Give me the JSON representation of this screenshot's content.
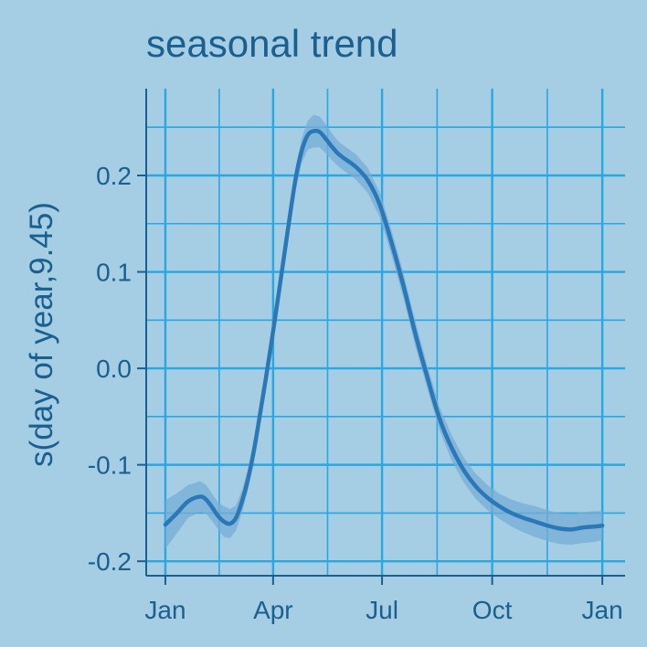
{
  "chart_data": {
    "type": "line",
    "title": "seasonal trend",
    "xlabel": "",
    "ylabel": "s(day of year,9.45)",
    "x_ticks": [
      {
        "label": "Jan",
        "day": 1
      },
      {
        "label": "Apr",
        "day": 91
      },
      {
        "label": "Jul",
        "day": 182
      },
      {
        "label": "Oct",
        "day": 274
      },
      {
        "label": "Jan",
        "day": 366
      }
    ],
    "y_ticks": [
      {
        "label": "-0.2",
        "value": -0.2
      },
      {
        "label": "-0.1",
        "value": -0.1
      },
      {
        "label": "0.0",
        "value": 0.0
      },
      {
        "label": "0.1",
        "value": 0.1
      },
      {
        "label": "0.2",
        "value": 0.2
      }
    ],
    "xlim": [
      -15,
      385
    ],
    "ylim": [
      -0.215,
      0.29
    ],
    "grid": true,
    "series": [
      {
        "x": [
          1,
          10,
          20,
          30,
          35,
          40,
          45,
          50,
          55,
          60,
          65,
          70,
          75,
          80,
          85,
          90,
          95,
          100,
          105,
          110,
          115,
          120,
          125,
          130,
          135,
          140,
          145,
          150,
          160,
          170,
          180,
          190,
          200,
          210,
          220,
          230,
          240,
          250,
          260,
          270,
          280,
          290,
          300,
          310,
          320,
          330,
          340,
          350,
          360,
          366
        ],
        "y": [
          -0.162,
          -0.151,
          -0.138,
          -0.133,
          -0.136,
          -0.144,
          -0.153,
          -0.159,
          -0.161,
          -0.155,
          -0.138,
          -0.115,
          -0.085,
          -0.048,
          -0.01,
          0.03,
          0.072,
          0.115,
          0.158,
          0.198,
          0.226,
          0.242,
          0.246,
          0.245,
          0.238,
          0.23,
          0.223,
          0.218,
          0.209,
          0.195,
          0.17,
          0.13,
          0.085,
          0.035,
          -0.01,
          -0.052,
          -0.082,
          -0.105,
          -0.122,
          -0.134,
          -0.143,
          -0.15,
          -0.155,
          -0.159,
          -0.163,
          -0.166,
          -0.167,
          -0.165,
          -0.164,
          -0.163
        ],
        "lower": [
          -0.187,
          -0.172,
          -0.155,
          -0.149,
          -0.151,
          -0.158,
          -0.167,
          -0.175,
          -0.176,
          -0.168,
          -0.15,
          -0.126,
          -0.096,
          -0.059,
          -0.021,
          0.019,
          0.061,
          0.104,
          0.147,
          0.186,
          0.213,
          0.227,
          0.229,
          0.229,
          0.223,
          0.216,
          0.21,
          0.205,
          0.196,
          0.182,
          0.157,
          0.117,
          0.072,
          0.022,
          -0.022,
          -0.064,
          -0.095,
          -0.118,
          -0.135,
          -0.147,
          -0.156,
          -0.164,
          -0.17,
          -0.175,
          -0.179,
          -0.182,
          -0.183,
          -0.181,
          -0.18,
          -0.178
        ],
        "upper": [
          -0.137,
          -0.13,
          -0.121,
          -0.117,
          -0.121,
          -0.13,
          -0.139,
          -0.143,
          -0.146,
          -0.142,
          -0.126,
          -0.104,
          -0.074,
          -0.037,
          0.001,
          0.041,
          0.083,
          0.126,
          0.169,
          0.21,
          0.239,
          0.257,
          0.263,
          0.261,
          0.253,
          0.244,
          0.236,
          0.231,
          0.222,
          0.208,
          0.183,
          0.143,
          0.098,
          0.048,
          0.002,
          -0.04,
          -0.069,
          -0.092,
          -0.109,
          -0.121,
          -0.13,
          -0.136,
          -0.14,
          -0.143,
          -0.147,
          -0.15,
          -0.151,
          -0.149,
          -0.148,
          -0.148
        ]
      }
    ]
  },
  "colors": {
    "background": "#a5cde3",
    "grid": "#29a7e0",
    "axis": "#1b5f8f",
    "line": "#2a78b7",
    "band": "#75acd5"
  }
}
